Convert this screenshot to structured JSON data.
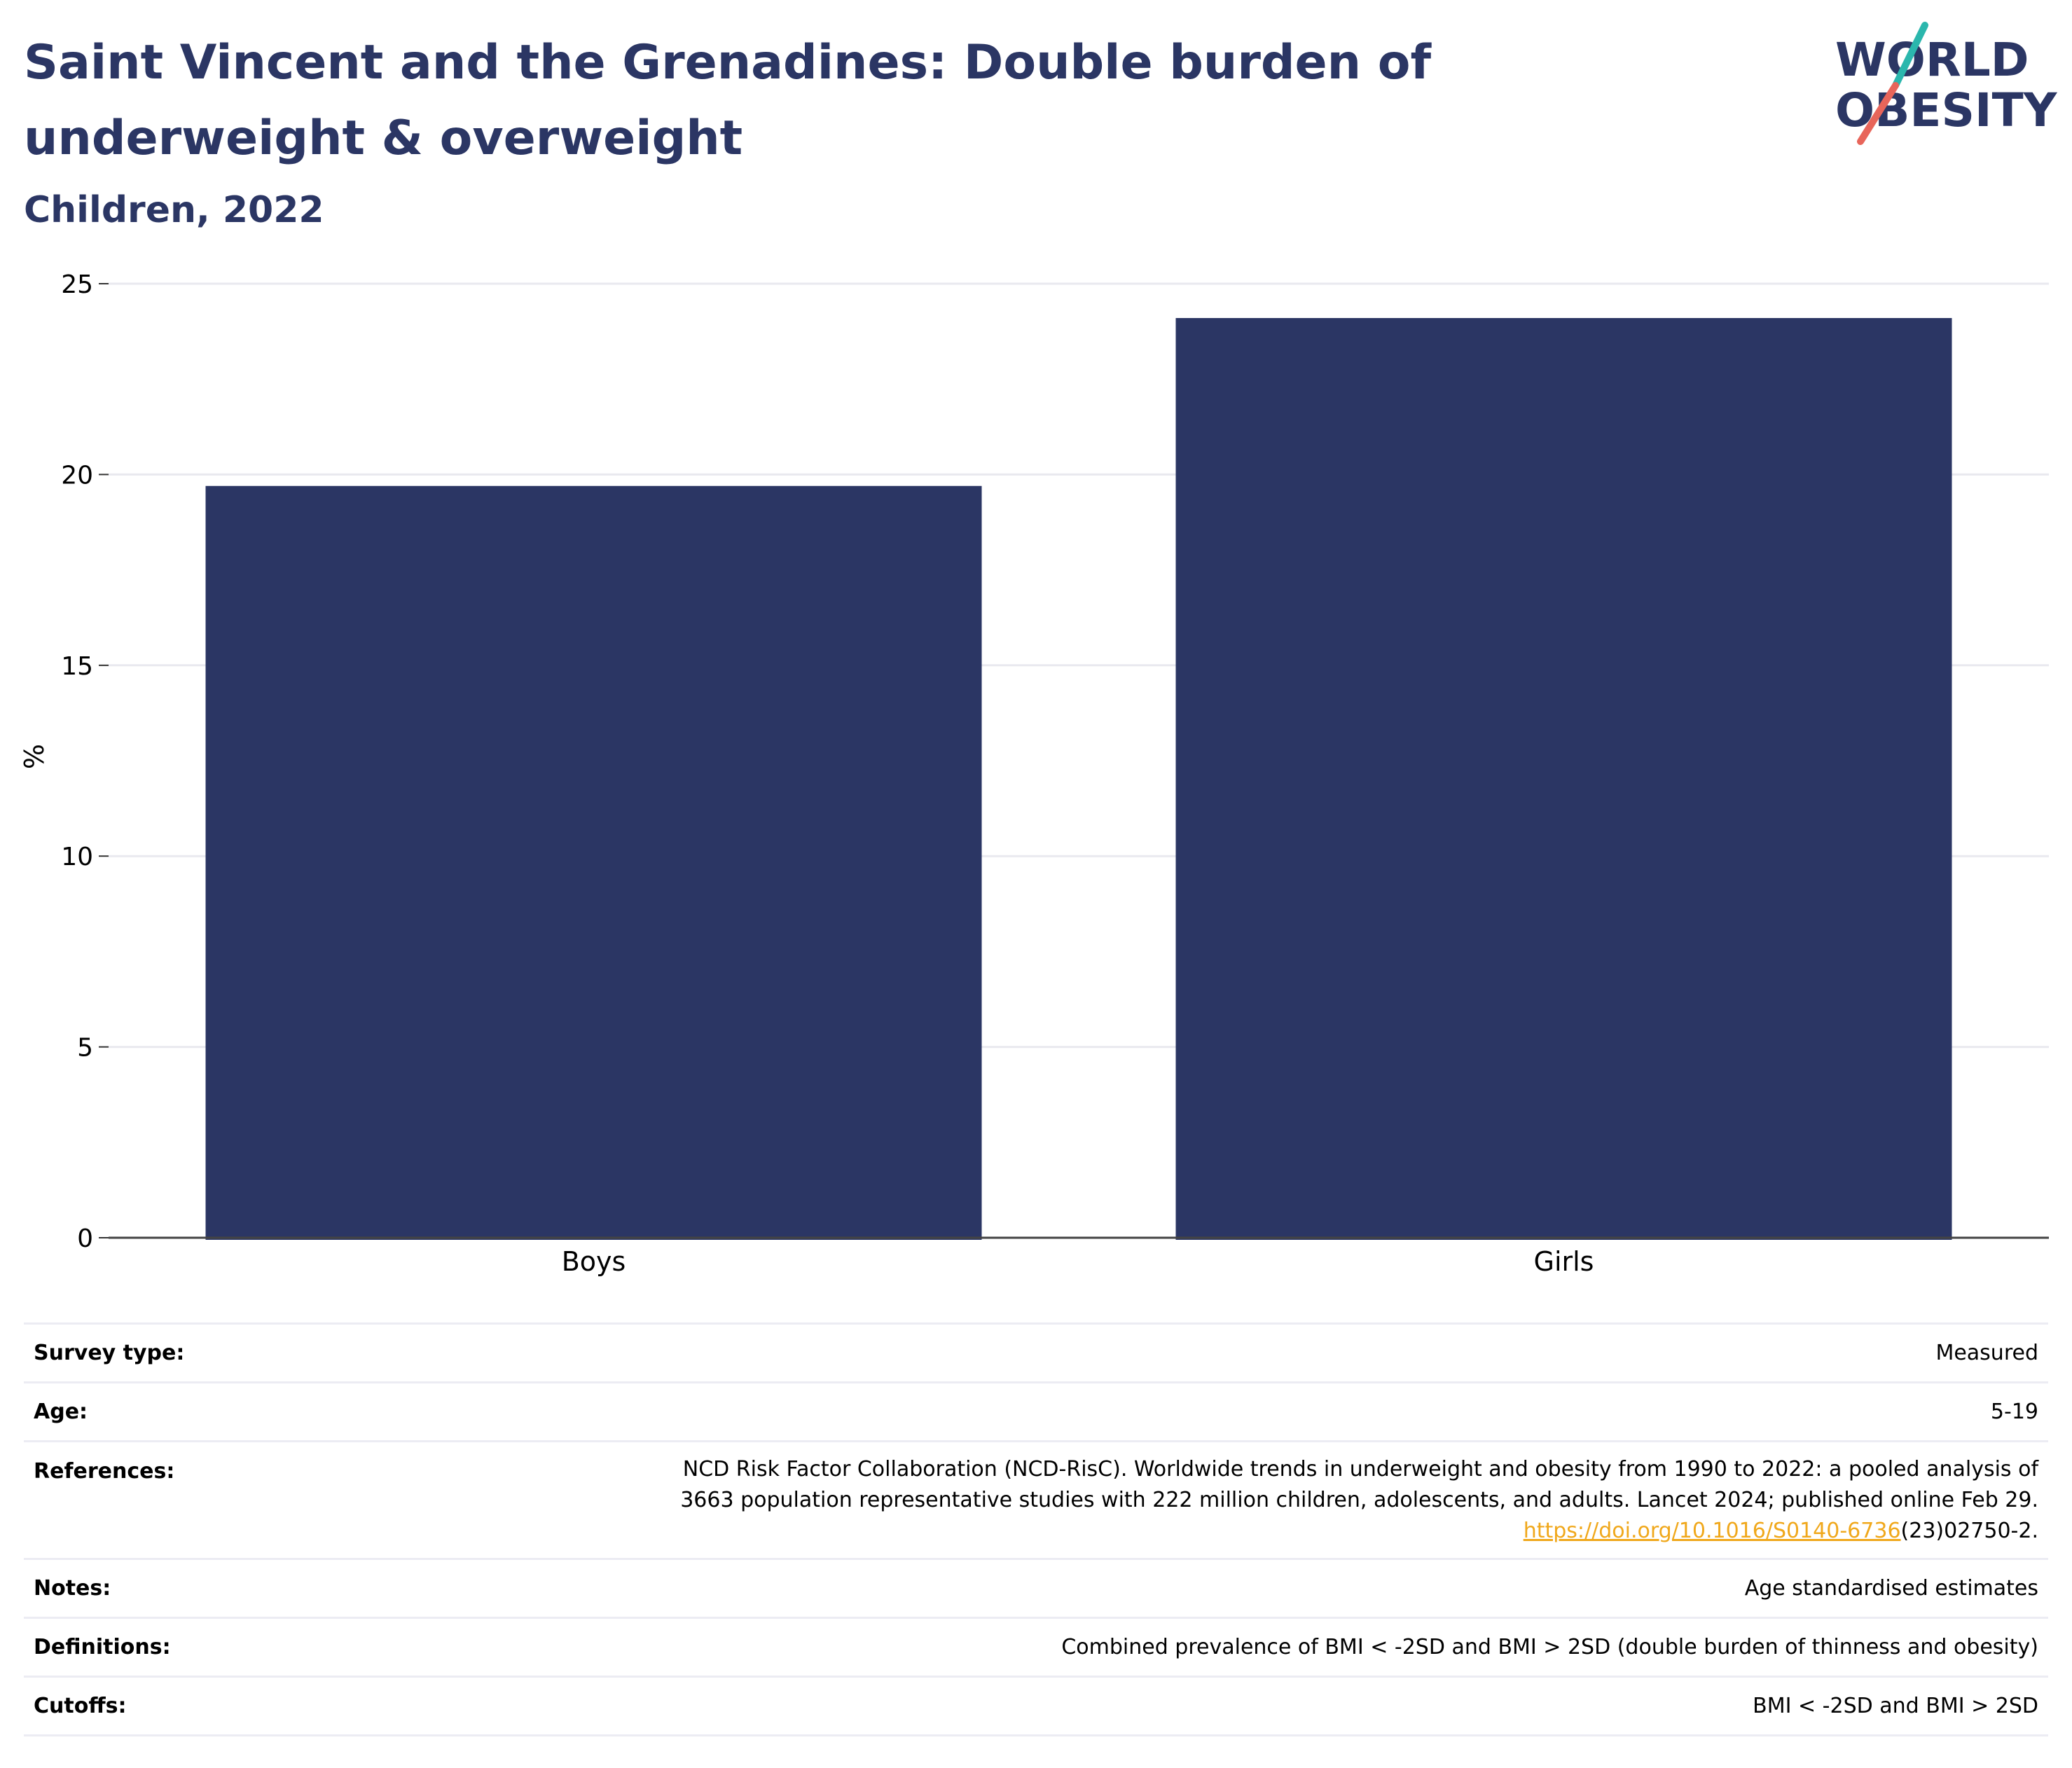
{
  "header": {
    "title": "Saint Vincent and the Grenadines: Double burden of underweight & overweight",
    "subtitle": "Children, 2022"
  },
  "logo": {
    "line1": "WORLD",
    "line2": "OBESITY",
    "colors": {
      "text": "#2b3664",
      "slash_top": "#2bb7ad",
      "slash_bottom": "#e8655a"
    }
  },
  "chart_data": {
    "type": "bar",
    "categories": [
      "Boys",
      "Girls"
    ],
    "values": [
      19.7,
      24.1
    ],
    "xlabel": "",
    "ylabel": "%",
    "ylim": [
      0,
      25
    ],
    "yticks": [
      0,
      5,
      10,
      15,
      20,
      25
    ],
    "grid": true,
    "bar_color": "#2b3664"
  },
  "meta": {
    "rows": [
      {
        "key": "Survey type:",
        "value": "Measured"
      },
      {
        "key": "Age:",
        "value": "5-19"
      },
      {
        "key": "References:",
        "value_line1": "NCD Risk Factor Collaboration (NCD-RisC). Worldwide trends in underweight and obesity from 1990 to 2022: a pooled analysis of",
        "value_line2": "3663 population representative studies with 222 million children, adolescents, and adults. Lancet 2024; published online Feb 29.",
        "link_text": "https://doi.org/10.1016/S0140-6736",
        "link_suffix": "(23)02750-2."
      },
      {
        "key": "Notes:",
        "value": "Age standardised estimates"
      },
      {
        "key": "Definitions:",
        "value": "Combined prevalence of BMI < -2SD and BMI > 2SD (double burden of thinness and obesity)"
      },
      {
        "key": "Cutoffs:",
        "value": "BMI < -2SD and BMI > 2SD"
      }
    ],
    "link_color": "#f0a81c"
  }
}
